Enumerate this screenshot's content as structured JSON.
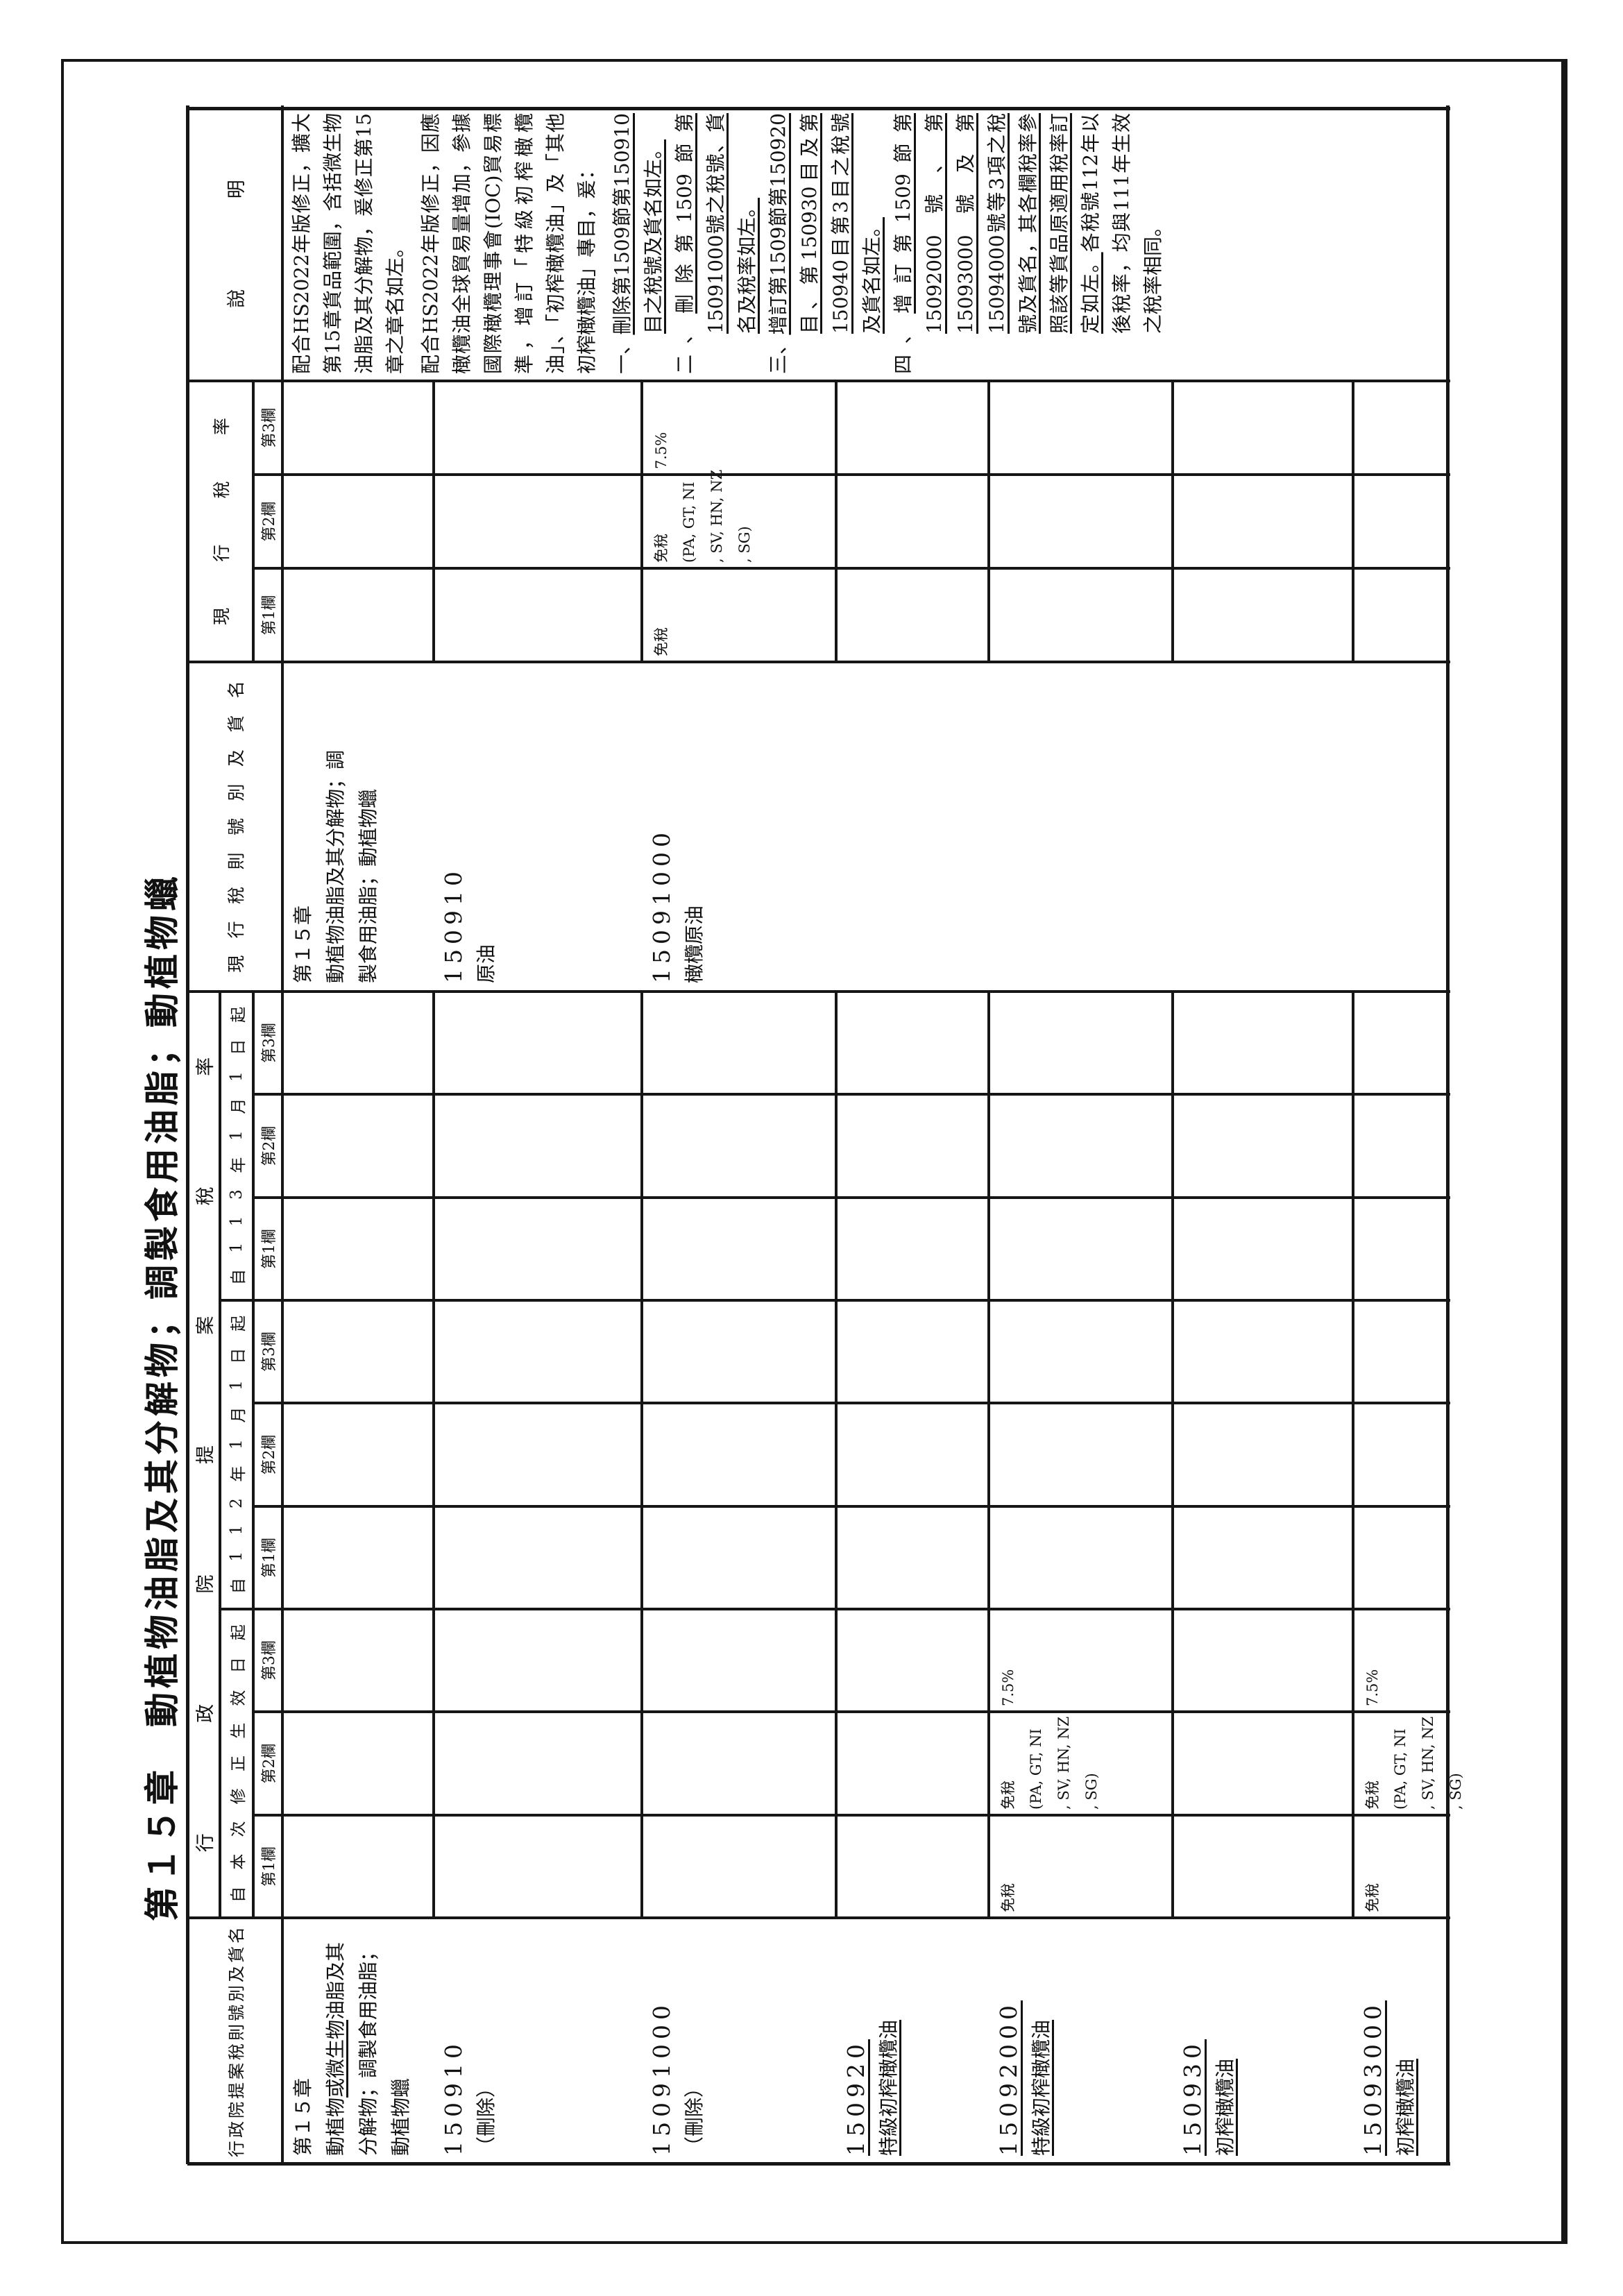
{
  "title": "第１５章　動植物油脂及其分解物；調製食用油脂；動植物蠟",
  "header": {
    "proposed_name_col": "行政院提案稅則號別及貨名",
    "proposed_rate_group": "行政院提案稅率",
    "subgroups": [
      "自本次修正生效日起",
      "自112年1月1日起",
      "自113年1月1日起"
    ],
    "col_labels": [
      "第1欄",
      "第2欄",
      "第3欄"
    ],
    "current_name_col": "現行稅則號別及貨名",
    "current_rate_group": "現行稅率",
    "remark_col": "說明"
  },
  "rows": [
    {
      "proposed": [
        [
          [
            "第１５章",
            0
          ]
        ],
        [
          [
            "動植物",
            0
          ],
          [
            "或微生物",
            1
          ],
          [
            "油脂及其分解物；調製食用油脂；動植物蠟",
            0
          ]
        ]
      ],
      "current": [
        [
          [
            "第１５章",
            0
          ]
        ],
        [
          [
            "動植物油脂及其分解物；調製食用油脂；動植物蠟",
            0
          ]
        ]
      ]
    },
    {
      "proposed": [
        [
          [
            "150910",
            0
          ]
        ],
        [
          [
            "（刪除）",
            0
          ]
        ]
      ],
      "current": [
        [
          [
            "150910",
            0
          ]
        ],
        [
          [
            "原油",
            0
          ]
        ]
      ]
    },
    {
      "proposed": [
        [
          [
            "15091000",
            0
          ]
        ],
        [
          [
            "（刪除）",
            0
          ]
        ]
      ],
      "current": [
        [
          [
            "15091000",
            0
          ]
        ],
        [
          [
            "橄欖原油",
            0
          ]
        ]
      ],
      "current_rates": [
        "免稅",
        [
          "免稅",
          "(PA, GT, NI",
          ", SV, HN, NZ",
          ", SG)"
        ],
        "7.5%"
      ]
    },
    {
      "proposed": [
        [
          [
            "150920",
            1
          ]
        ],
        [
          [
            "特級初榨橄欖油",
            1
          ]
        ]
      ]
    },
    {
      "proposed": [
        [
          [
            "15092000",
            1
          ]
        ],
        [
          [
            "特級初榨橄欖油",
            1
          ]
        ]
      ],
      "proposed_rates": [
        "免稅",
        [
          "免稅",
          "(PA, GT, NI",
          ", SV, HN, NZ",
          ", SG)"
        ],
        "7.5%"
      ]
    },
    {
      "proposed": [
        [
          [
            "150930",
            1
          ]
        ],
        [
          [
            "初榨橄欖油",
            1
          ]
        ]
      ]
    },
    {
      "proposed": [
        [
          [
            "15093000",
            1
          ]
        ],
        [
          [
            "初榨橄欖油",
            1
          ]
        ]
      ],
      "proposed_rates": [
        "免稅",
        [
          "免稅",
          "(PA, GT, NI",
          ", SV, HN, NZ",
          ", SG)"
        ],
        "7.5%"
      ]
    }
  ],
  "remark": {
    "row1": "配合HS2022年版修正，擴大第15章貨品範圍，含括微生物油脂及其分解物，爰修正第15章之章名如左。",
    "intro": "配合HS2022年版修正，因應橄欖油全球貿易量增加，參據國際橄欖理事會(IOC)貿易標準，增訂「特級初榨橄欖油」、「初榨橄欖油」及「其他初榨橄欖油」專目，爰：",
    "items": [
      {
        "marker": "一、",
        "text": "刪除第1509節第150910目之稅號及貨名如左。",
        "underline": true
      },
      {
        "marker": "二、",
        "text": "刪除第1509節第15091000號之稅號、貨名及稅率如左。",
        "underline": true
      },
      {
        "marker": "三、",
        "text": "增訂第1509節第150920目、第150930目及第150940目第3目之稅號及貨名如左。",
        "underline": true
      },
      {
        "marker": "四、",
        "text": "增訂第1509節第15092000號、第15093000號及第15094000號等3項之稅號及貨名，其各欄稅率參照該等貨品原適用稅率訂定如左。",
        "underline": true,
        "tail": "各稅號112年以後稅率，均與111年生效之稅率相同。"
      }
    ]
  }
}
